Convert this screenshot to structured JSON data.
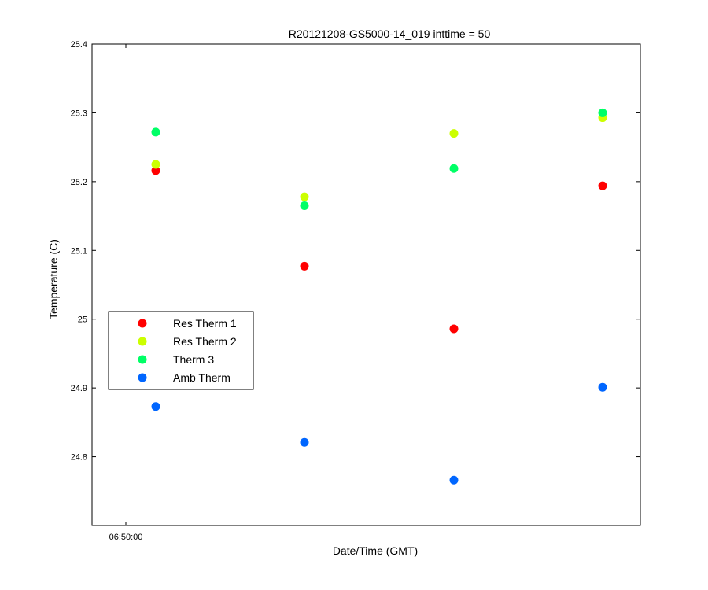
{
  "chart_data": {
    "type": "scatter",
    "title": "R20121208-GS5000-14_019 inttime = 50",
    "xlabel": "Date/Time (GMT)",
    "ylabel": "Temperature (C)",
    "ylim": [
      24.7,
      25.4
    ],
    "yticks": [
      "24.8",
      "24.9",
      "25",
      "25.1",
      "25.2",
      "25.3",
      "25.4"
    ],
    "xticks": [
      "06:50:00"
    ],
    "x": [
      1,
      2,
      3,
      4
    ],
    "series": [
      {
        "name": "Res Therm 1",
        "color": "#ff0000",
        "values": [
          25.216,
          25.077,
          24.986,
          25.194
        ]
      },
      {
        "name": "Res Therm 2",
        "color": "#ccff00",
        "values": [
          25.225,
          25.178,
          25.27,
          25.293
        ]
      },
      {
        "name": "Therm 3",
        "color": "#00ff66",
        "values": [
          25.272,
          25.165,
          25.219,
          25.3
        ]
      },
      {
        "name": "Amb Therm",
        "color": "#0066ff",
        "values": [
          24.873,
          24.821,
          24.766,
          24.901
        ]
      }
    ],
    "legend_position": "left",
    "grid": false
  }
}
